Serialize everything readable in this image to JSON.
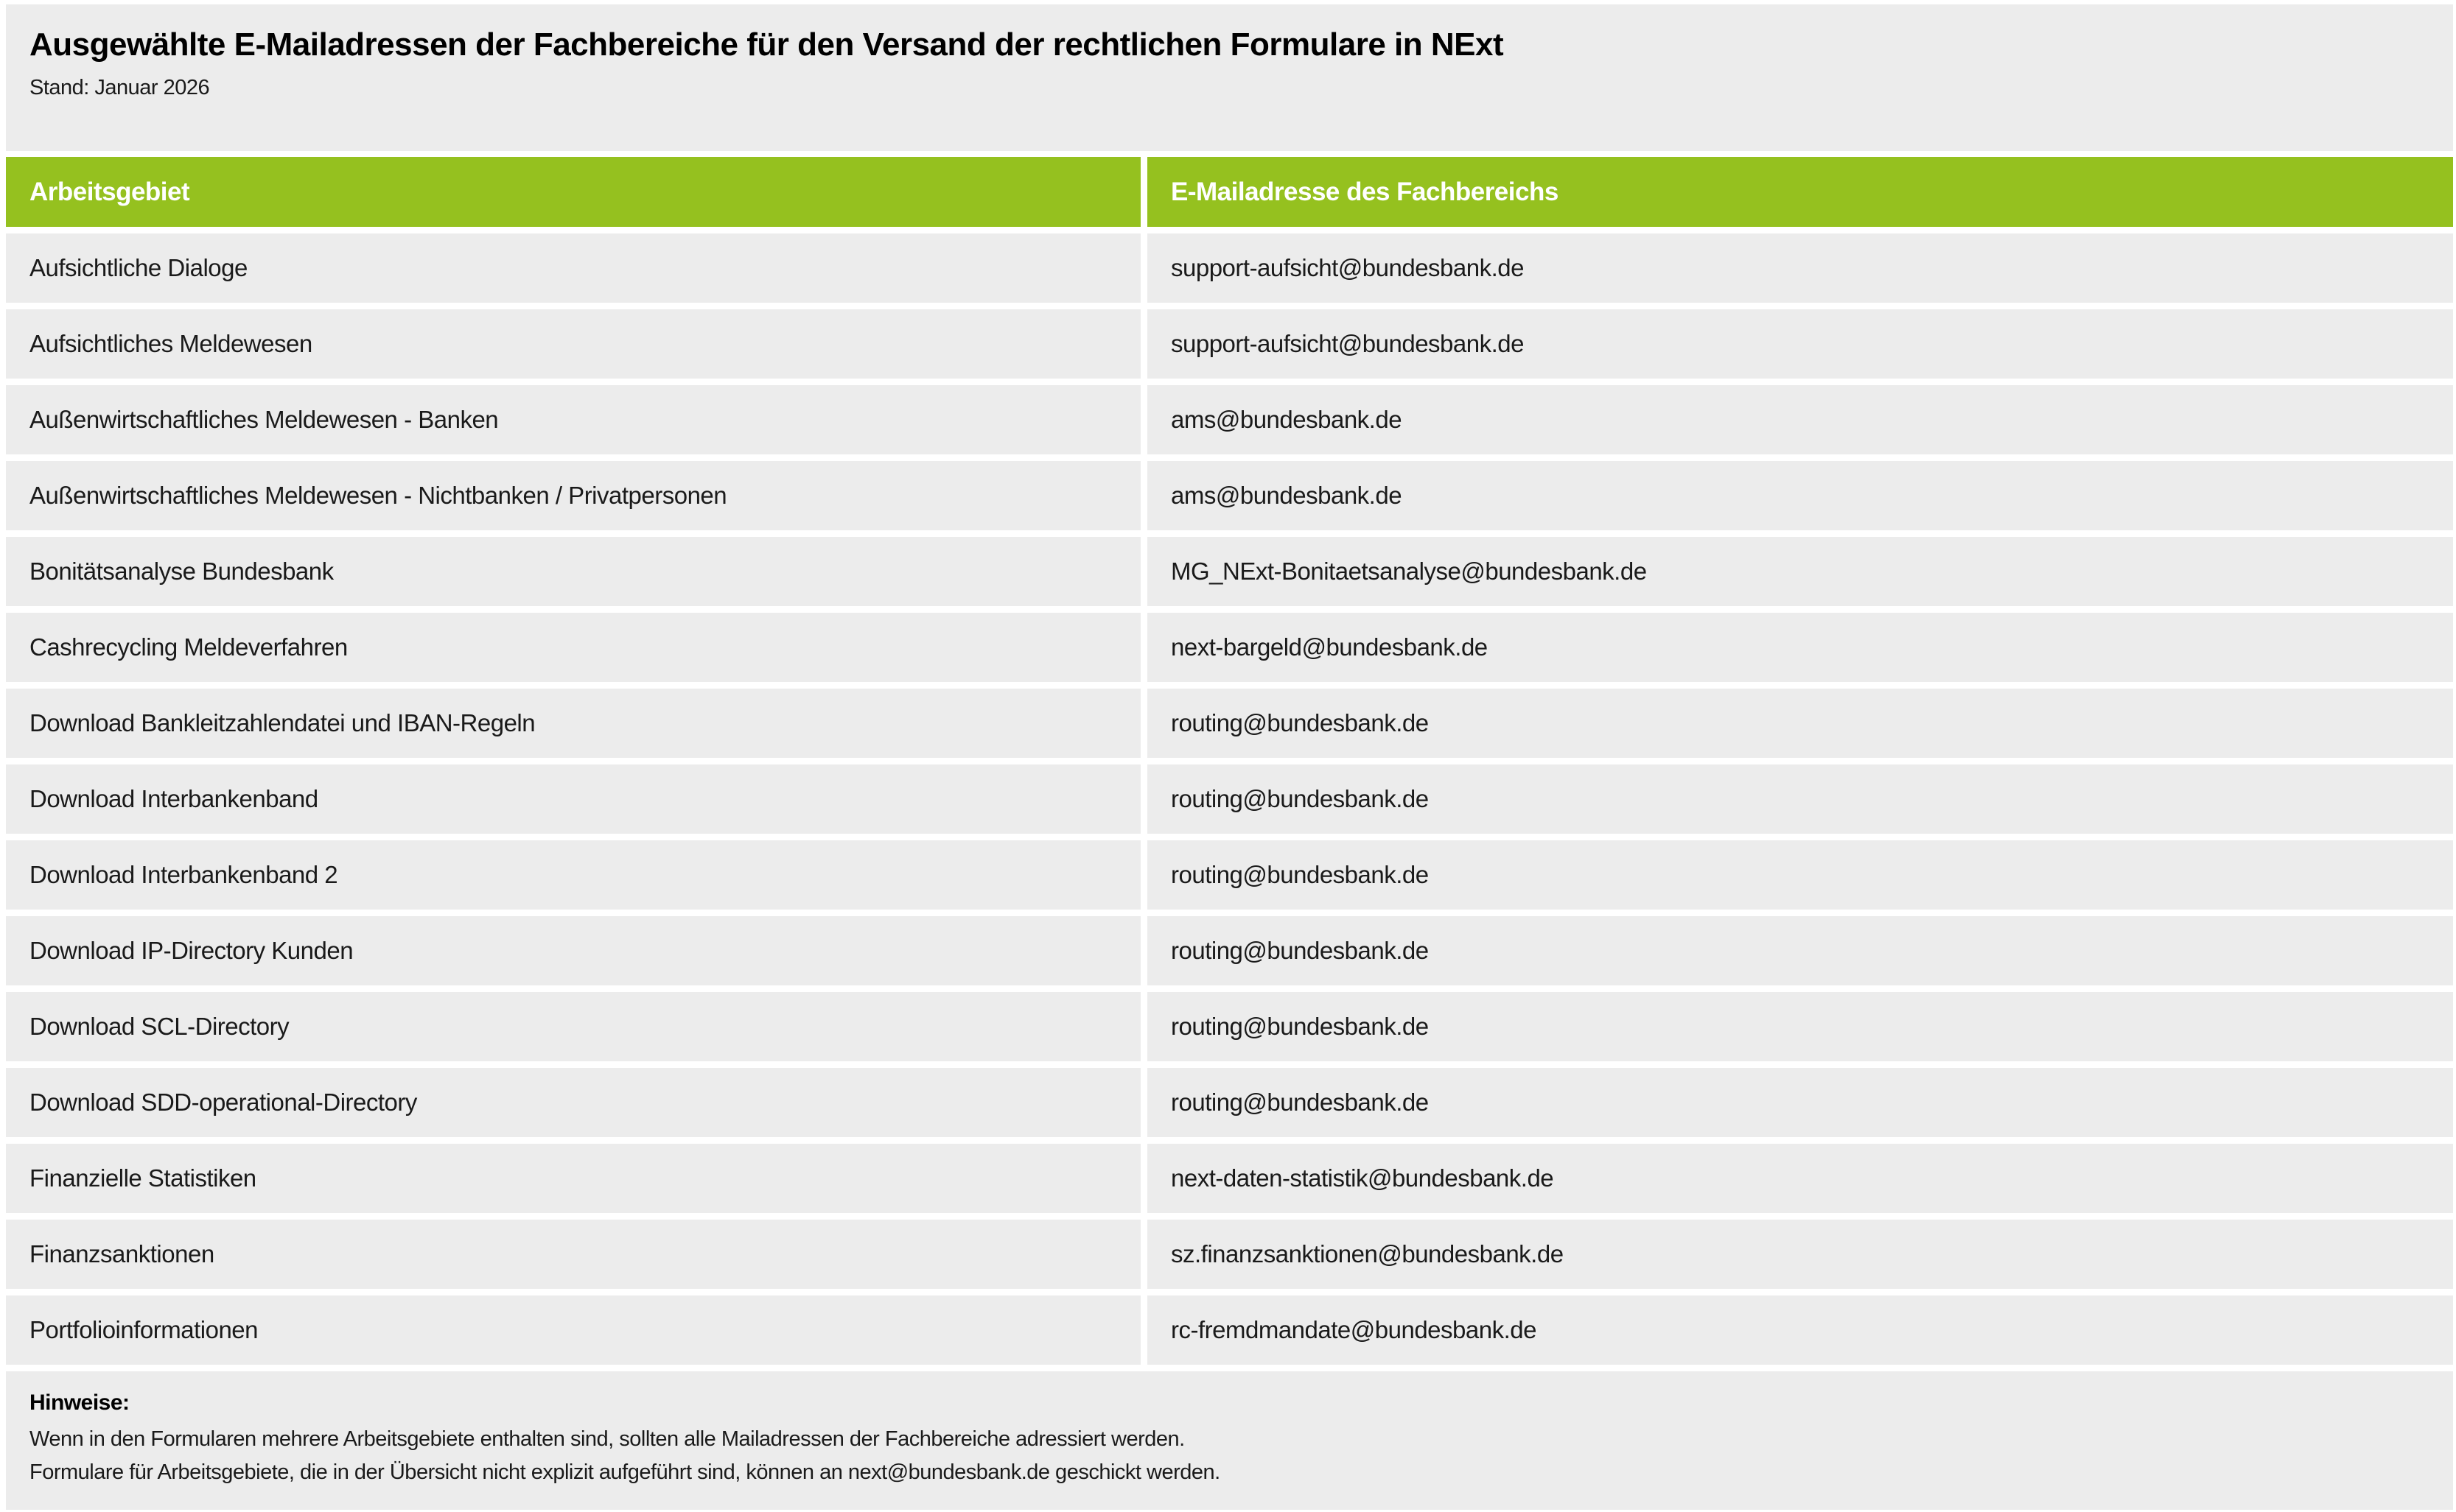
{
  "page": {
    "title": "Ausgewählte E-Mailadressen der Fachbereiche für den Versand der rechtlichen Formulare in NExt",
    "subtitle": "Stand: Januar 2026"
  },
  "table": {
    "columns": {
      "arbeitsgebiet": "Arbeitsgebiet",
      "email": "E-Mailadresse des Fachbereichs"
    },
    "rows": [
      {
        "arbeitsgebiet": "Aufsichtliche Dialoge",
        "email": "support-aufsicht@bundesbank.de"
      },
      {
        "arbeitsgebiet": "Aufsichtliches Meldewesen",
        "email": "support-aufsicht@bundesbank.de"
      },
      {
        "arbeitsgebiet": "Außenwirtschaftliches Meldewesen - Banken",
        "email": "ams@bundesbank.de"
      },
      {
        "arbeitsgebiet": "Außenwirtschaftliches Meldewesen - Nichtbanken / Privatpersonen",
        "email": "ams@bundesbank.de"
      },
      {
        "arbeitsgebiet": "Bonitätsanalyse Bundesbank",
        "email": "MG_NExt-Bonitaetsanalyse@bundesbank.de"
      },
      {
        "arbeitsgebiet": "Cashrecycling Meldeverfahren",
        "email": "next-bargeld@bundesbank.de"
      },
      {
        "arbeitsgebiet": "Download Bankleitzahlendatei und IBAN-Regeln",
        "email": "routing@bundesbank.de"
      },
      {
        "arbeitsgebiet": "Download Interbankenband",
        "email": "routing@bundesbank.de"
      },
      {
        "arbeitsgebiet": "Download Interbankenband 2",
        "email": "routing@bundesbank.de"
      },
      {
        "arbeitsgebiet": "Download IP-Directory Kunden",
        "email": "routing@bundesbank.de"
      },
      {
        "arbeitsgebiet": "Download SCL-Directory",
        "email": "routing@bundesbank.de"
      },
      {
        "arbeitsgebiet": "Download SDD-operational-Directory",
        "email": "routing@bundesbank.de"
      },
      {
        "arbeitsgebiet": "Finanzielle Statistiken",
        "email": "next-daten-statistik@bundesbank.de"
      },
      {
        "arbeitsgebiet": "Finanzsanktionen",
        "email": "sz.finanzsanktionen@bundesbank.de"
      },
      {
        "arbeitsgebiet": "Portfolioinformationen",
        "email": "rc-fremdmandate@bundesbank.de"
      }
    ]
  },
  "notes": {
    "heading": "Hinweise:",
    "lines": [
      "Wenn in den Formularen mehrere Arbeitsgebiete enthalten sind, sollten alle Mailadressen der Fachbereiche adressiert werden.",
      "Formulare für Arbeitsgebiete, die in der Übersicht nicht explizit aufgeführt sind, können an next@bundesbank.de geschickt werden."
    ]
  },
  "colors": {
    "accent_green": "#95C11F",
    "block_gray": "#ECECEC",
    "page_background": "#FFFFFF",
    "text": "#1A1A1A"
  }
}
